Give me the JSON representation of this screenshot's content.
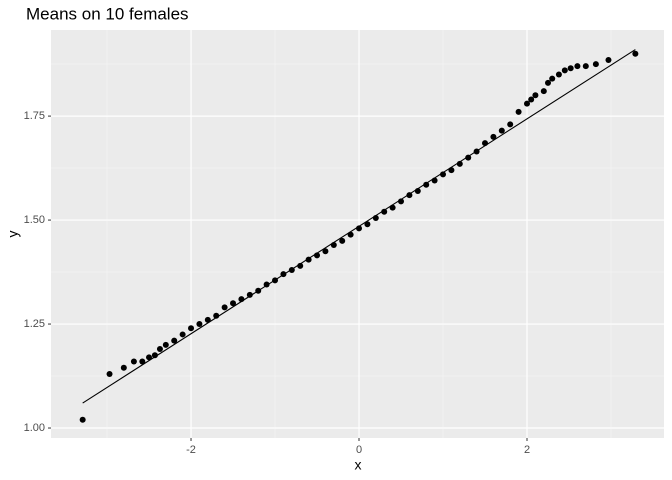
{
  "chart_data": {
    "type": "scatter",
    "title": "Means on 10 females",
    "x_label": "x",
    "y_label": "y",
    "x": [
      -3.29,
      -2.97,
      -2.8,
      -2.68,
      -2.58,
      -2.5,
      -2.43,
      -2.37,
      -2.3,
      -2.2,
      -2.1,
      -2.0,
      -1.9,
      -1.8,
      -1.7,
      -1.6,
      -1.5,
      -1.4,
      -1.3,
      -1.2,
      -1.1,
      -1.0,
      -0.9,
      -0.8,
      -0.7,
      -0.6,
      -0.5,
      -0.4,
      -0.3,
      -0.2,
      -0.1,
      0,
      0.1,
      0.2,
      0.3,
      0.4,
      0.5,
      0.6,
      0.7,
      0.8,
      0.9,
      1.0,
      1.1,
      1.2,
      1.3,
      1.4,
      1.5,
      1.6,
      1.7,
      1.8,
      1.9,
      2.0,
      2.05,
      2.1,
      2.2,
      2.25,
      2.3,
      2.38,
      2.45,
      2.52,
      2.6,
      2.7,
      2.82,
      2.97,
      3.29
    ],
    "values": [
      1.02,
      1.13,
      1.145,
      1.16,
      1.16,
      1.17,
      1.175,
      1.19,
      1.2,
      1.21,
      1.225,
      1.24,
      1.25,
      1.26,
      1.27,
      1.29,
      1.3,
      1.31,
      1.32,
      1.33,
      1.345,
      1.355,
      1.37,
      1.38,
      1.39,
      1.405,
      1.415,
      1.425,
      1.44,
      1.45,
      1.465,
      1.48,
      1.49,
      1.505,
      1.52,
      1.53,
      1.545,
      1.56,
      1.57,
      1.585,
      1.595,
      1.61,
      1.62,
      1.635,
      1.65,
      1.665,
      1.685,
      1.7,
      1.715,
      1.73,
      1.76,
      1.78,
      1.79,
      1.8,
      1.81,
      1.83,
      1.84,
      1.85,
      1.86,
      1.865,
      1.87,
      1.87,
      1.875,
      1.885,
      1.9
    ],
    "color": "#000000",
    "reference_line": {
      "x": [
        -3.29,
        3.29
      ],
      "y": [
        1.06,
        1.91
      ]
    },
    "xlim": [
      -3.667,
      3.631
    ],
    "ylim": [
      0.976,
      1.957
    ],
    "xticks": [
      -2,
      0,
      2
    ],
    "yticks": [
      {
        "value": 1.0,
        "label": "1.00"
      },
      {
        "value": 1.25,
        "label": "1.25"
      },
      {
        "value": 1.5,
        "label": "1.50"
      },
      {
        "value": 1.75,
        "label": "1.75"
      }
    ],
    "x_minor_ticks": [
      -3,
      -1,
      1,
      3
    ],
    "y_minor_ticks": [
      1.125,
      1.375,
      1.625,
      1.875
    ],
    "grid": true
  }
}
